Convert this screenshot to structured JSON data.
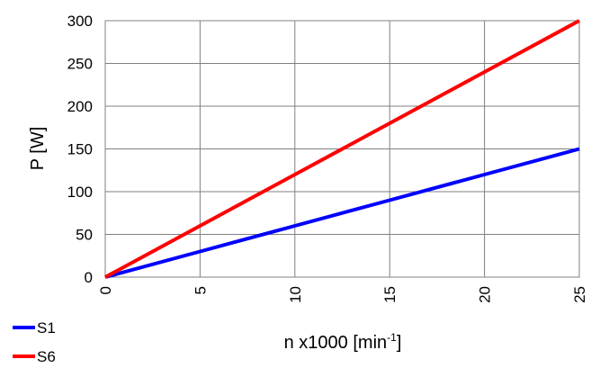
{
  "chart_data": {
    "type": "line",
    "title": "",
    "xlabel": "n x1000  [min",
    "xlabel_sup": "-1",
    "xlabel_end": "]",
    "ylabel": "P [W]",
    "xlim": [
      0,
      25
    ],
    "ylim": [
      0,
      300
    ],
    "x_ticks": [
      "0",
      "5",
      "10",
      "15",
      "20",
      "25"
    ],
    "y_ticks": [
      "0",
      "50",
      "100",
      "150",
      "200",
      "250",
      "300"
    ],
    "grid": true,
    "legend_position": "bottom-left",
    "series": [
      {
        "name": "S1",
        "color": "#0000ff",
        "x": [
          0,
          5,
          10,
          15,
          20,
          25
        ],
        "y": [
          0,
          30,
          60,
          90,
          120,
          150
        ]
      },
      {
        "name": "S6",
        "color": "#ff0000",
        "x": [
          0,
          5,
          10,
          15,
          20,
          25
        ],
        "y": [
          0,
          60,
          120,
          180,
          240,
          300
        ]
      }
    ]
  }
}
